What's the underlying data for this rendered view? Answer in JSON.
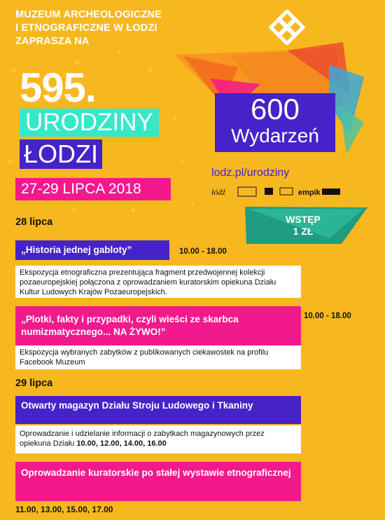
{
  "header": {
    "line1": "MUZEUM ARCHEOLOGICZNE",
    "line2": "I ETNOGRAFICZNE W ŁODZI",
    "line3": "ZAPRASZA NA"
  },
  "hero": {
    "number": "595.",
    "word1": "URODZINY",
    "word2": "ŁODZI",
    "dates": "27-29 LIPCA 2018"
  },
  "promo": {
    "count": "600",
    "label": "Wydarzeń",
    "url": "lodz.pl/urodziny",
    "sponsor_empik": "empik",
    "entry_line1": "WSTĘP",
    "entry_line2": "1 ZŁ"
  },
  "days": [
    {
      "label": "28 lipca",
      "events": [
        {
          "title": "„Historia jednej gabloty”",
          "time": "10.00 - 18.00",
          "description": "Ekspozycja etnograficzna prezentująca fragment przedwojennej kolekcji pozaeuropejskiej połączona z oprowadzaniem kuratorskim opiekuna Działu Kultur Ludowych Krajów Pozaeuropejskich."
        },
        {
          "title": "„Plotki, fakty i przypadki, czyli wieści ze skarbca numizmatycznego... NA ŻYWO!”",
          "time": "10.00 - 18.00",
          "description": "Ekspozycja wybranych zabytków z publikowanych ciekawostek na profilu Facebook Muzeum"
        }
      ]
    },
    {
      "label": "29 lipca",
      "events": [
        {
          "title": "Otwarty magazyn Działu Stroju Ludowego i Tkaniny",
          "description": "Oprowadzanie i udzielanie informacji o zabytkach magazynowych przez opiekuna Działu",
          "times": "10.00, 12.00, 14.00, 16.00"
        },
        {
          "title": "Oprowadzanie kuratorskie po stałej wystawie etnograficznej",
          "times": "11.00, 13.00, 15.00, 17.00"
        }
      ]
    }
  ],
  "colors": {
    "background": "#f7b81f",
    "blue": "#4523c8",
    "pink": "#f2198d",
    "teal": "#35e8c8"
  }
}
